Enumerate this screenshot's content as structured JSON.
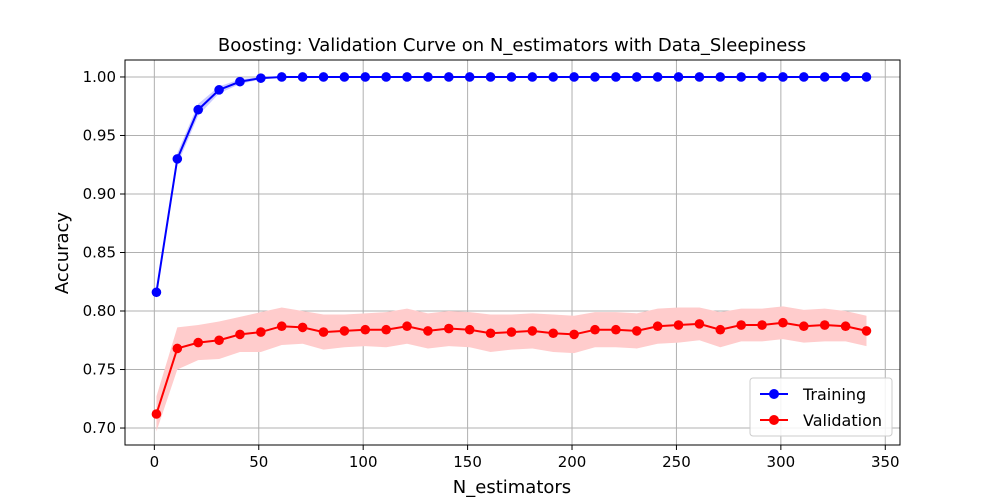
{
  "chart_data": {
    "type": "line",
    "title": "Boosting: Validation Curve on N_estimators with Data_Sleepiness",
    "xlabel": "N_estimators",
    "ylabel": "Accuracy",
    "xlim": [
      -14.05,
      357.05
    ],
    "ylim": [
      0.6855,
      1.0145
    ],
    "xticks": [
      0,
      50,
      100,
      150,
      200,
      250,
      300,
      350
    ],
    "xtick_labels": [
      "0",
      "50",
      "100",
      "150",
      "200",
      "250",
      "300",
      "350"
    ],
    "yticks": [
      0.7,
      0.75,
      0.8,
      0.85,
      0.9,
      0.95,
      1.0
    ],
    "ytick_labels": [
      "0.70",
      "0.75",
      "0.80",
      "0.85",
      "0.90",
      "0.95",
      "1.00"
    ],
    "grid": true,
    "legend_position": "lower-right",
    "x": [
      1,
      11,
      21,
      31,
      41,
      51,
      61,
      71,
      81,
      91,
      101,
      111,
      121,
      131,
      141,
      151,
      161,
      171,
      181,
      191,
      201,
      211,
      221,
      231,
      241,
      251,
      261,
      271,
      281,
      291,
      301,
      311,
      321,
      331,
      341
    ],
    "series": [
      {
        "name": "Training",
        "color": "#0000ff",
        "values": [
          0.816,
          0.93,
          0.972,
          0.989,
          0.996,
          0.999,
          1.0,
          1.0,
          1.0,
          1.0,
          1.0,
          1.0,
          1.0,
          1.0,
          1.0,
          1.0,
          1.0,
          1.0,
          1.0,
          1.0,
          1.0,
          1.0,
          1.0,
          1.0,
          1.0,
          1.0,
          1.0,
          1.0,
          1.0,
          1.0,
          1.0,
          1.0,
          1.0,
          1.0,
          1.0
        ],
        "band_upper": [
          0.818,
          0.935,
          0.977,
          0.992,
          0.998,
          1.0,
          1.0,
          1.0,
          1.0,
          1.0,
          1.0,
          1.0,
          1.0,
          1.0,
          1.0,
          1.0,
          1.0,
          1.0,
          1.0,
          1.0,
          1.0,
          1.0,
          1.0,
          1.0,
          1.0,
          1.0,
          1.0,
          1.0,
          1.0,
          1.0,
          1.0,
          1.0,
          1.0,
          1.0,
          1.0
        ],
        "band_lower": [
          0.814,
          0.925,
          0.967,
          0.986,
          0.994,
          0.998,
          0.9995,
          1.0,
          1.0,
          1.0,
          1.0,
          1.0,
          1.0,
          1.0,
          1.0,
          1.0,
          1.0,
          1.0,
          1.0,
          1.0,
          1.0,
          1.0,
          1.0,
          1.0,
          1.0,
          1.0,
          1.0,
          1.0,
          1.0,
          1.0,
          1.0,
          1.0,
          1.0,
          1.0,
          1.0
        ]
      },
      {
        "name": "Validation",
        "color": "#ff0000",
        "band_color": "#ffcccc",
        "values": [
          0.712,
          0.768,
          0.773,
          0.775,
          0.78,
          0.782,
          0.787,
          0.786,
          0.782,
          0.783,
          0.784,
          0.784,
          0.787,
          0.783,
          0.785,
          0.784,
          0.781,
          0.782,
          0.783,
          0.781,
          0.78,
          0.784,
          0.784,
          0.783,
          0.787,
          0.788,
          0.789,
          0.784,
          0.788,
          0.788,
          0.79,
          0.787,
          0.788,
          0.787,
          0.783
        ],
        "band_upper": [
          0.727,
          0.786,
          0.788,
          0.791,
          0.795,
          0.799,
          0.803,
          0.8,
          0.797,
          0.797,
          0.798,
          0.799,
          0.802,
          0.798,
          0.8,
          0.799,
          0.797,
          0.797,
          0.798,
          0.797,
          0.796,
          0.799,
          0.799,
          0.798,
          0.802,
          0.803,
          0.803,
          0.799,
          0.802,
          0.802,
          0.804,
          0.801,
          0.802,
          0.8,
          0.796
        ],
        "band_lower": [
          0.697,
          0.75,
          0.758,
          0.759,
          0.765,
          0.765,
          0.771,
          0.772,
          0.767,
          0.769,
          0.77,
          0.769,
          0.772,
          0.768,
          0.77,
          0.769,
          0.765,
          0.767,
          0.768,
          0.765,
          0.764,
          0.769,
          0.769,
          0.768,
          0.772,
          0.773,
          0.775,
          0.769,
          0.774,
          0.774,
          0.776,
          0.773,
          0.774,
          0.774,
          0.77
        ]
      }
    ]
  }
}
